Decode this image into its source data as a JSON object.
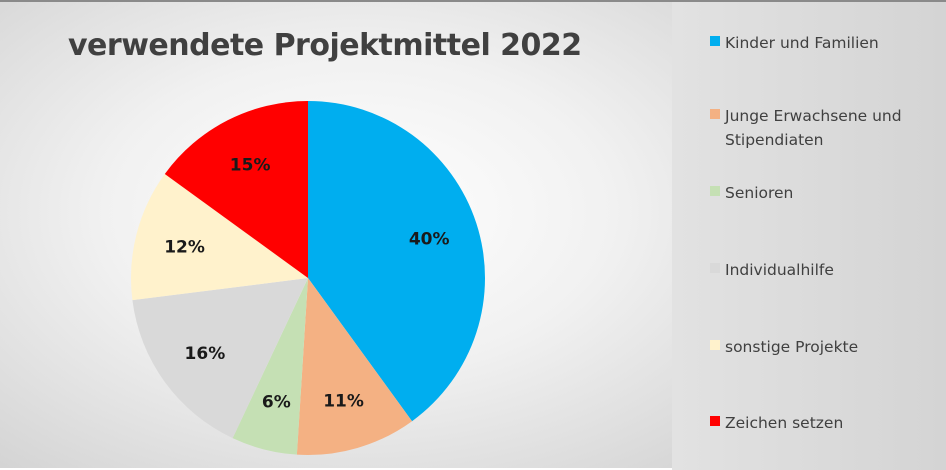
{
  "chart_data": {
    "type": "pie",
    "title": "verwendete Projektmittel 2022",
    "slices": [
      {
        "label": "Kinder und Familien",
        "value": 40,
        "data_label": "40%",
        "color": "#00AEEF"
      },
      {
        "label": "Junge Erwachsene und Stipendiaten",
        "value": 11,
        "data_label": "11%",
        "color": "#F4B183"
      },
      {
        "label": "Senioren",
        "value": 6,
        "data_label": "6%",
        "color": "#C5E0B4"
      },
      {
        "label": "Individualhilfe",
        "value": 16,
        "data_label": "16%",
        "color": "#D9D9D9"
      },
      {
        "label": "sonstige Projekte",
        "value": 12,
        "data_label": "12%",
        "color": "#FFF2CC"
      },
      {
        "label": "Zeichen setzen",
        "value": 15,
        "data_label": "15%",
        "color": "#FF0000"
      }
    ],
    "legend_position": "right"
  }
}
